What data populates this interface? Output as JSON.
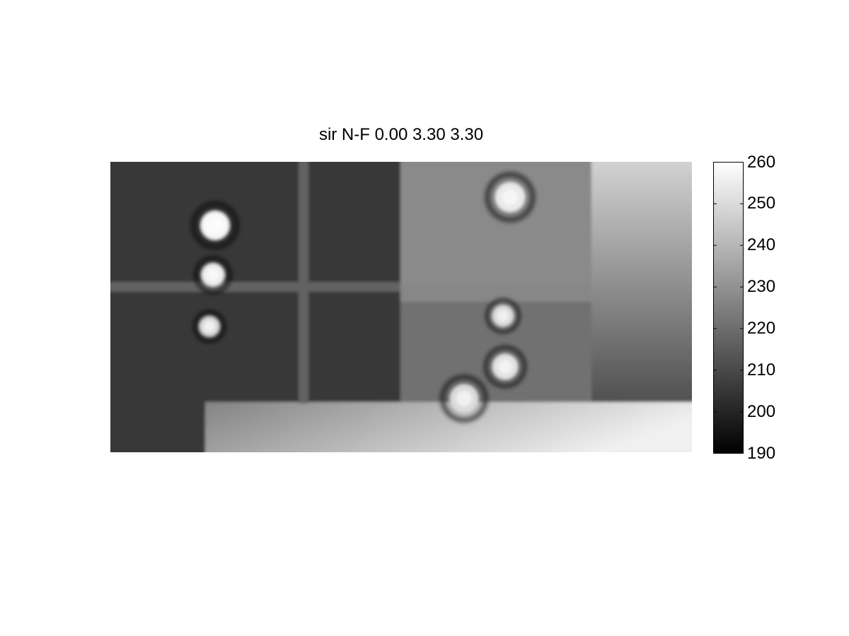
{
  "chart_data": {
    "type": "heatmap",
    "title": "sir N-F 0.00 3.30 3.30",
    "xlabel": "",
    "ylabel": "",
    "colormap": "gray",
    "clim": [
      190,
      260
    ],
    "colorbar": {
      "ticks": [
        "260",
        "250",
        "240",
        "230",
        "220",
        "210",
        "200",
        "190"
      ],
      "tick_values": [
        260,
        250,
        240,
        230,
        220,
        210,
        200,
        190
      ],
      "placement": "right"
    },
    "regions": {
      "left_background": 205,
      "right_upper": 228,
      "right_lower": 221,
      "right_strip_top": 248,
      "right_strip_bottom": 212,
      "bottom_strip_left": 226,
      "bottom_strip_right": 256,
      "stripes": 217
    },
    "spots": [
      {
        "value": 258
      },
      {
        "value": 255
      },
      {
        "value": 250
      },
      {
        "value": 254
      },
      {
        "value": 250
      },
      {
        "value": 252
      },
      {
        "value": 250
      }
    ]
  }
}
